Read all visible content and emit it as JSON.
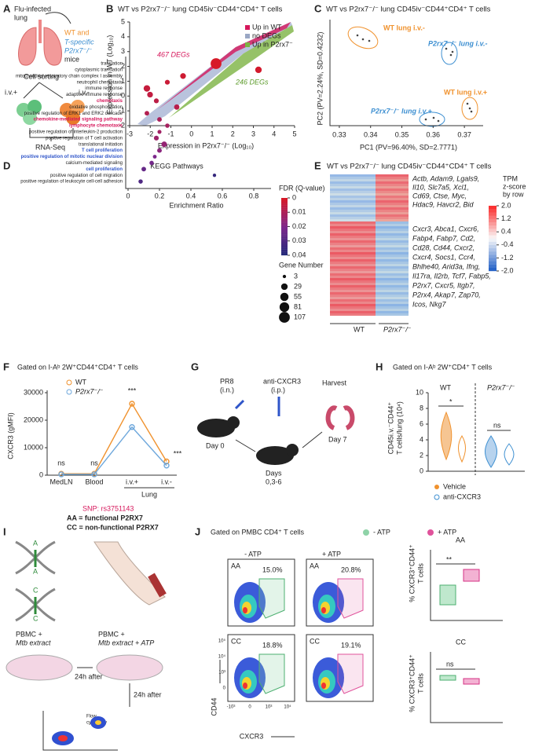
{
  "A": {
    "label": "A",
    "title_lines": [
      "Flu-infected",
      "lung"
    ],
    "wt": "WT and",
    "ko_lines": [
      "T-specific",
      "P2rx7⁻/⁻"
    ],
    "mice": "mice",
    "sorting": "Cell sorting",
    "ivp": "i.v.+",
    "ivm": "i.v.-",
    "rnaseq": "RNA-Seq"
  },
  "B": {
    "label": "B",
    "title": "WT vs P2rx7⁻/⁻ lung CD45iv⁻CD44⁺CD4⁺ T cells",
    "legend": [
      "Up in WT",
      "no DEGs",
      "Up in P2rx7⁻"
    ],
    "legend_colors": [
      "#d6175b",
      "#9aa7c4",
      "#7cb342"
    ],
    "up_wt": "467 DEGs",
    "up_ko": "246 DEGs",
    "x_label": "Expression in P2rx7⁻/⁻ (Log₁₀)",
    "y_label": "Expression in WT (Log₁₀)",
    "xlim": [
      -3,
      5
    ],
    "xticks": [
      -3,
      -2,
      -1,
      0,
      1,
      2,
      3,
      4,
      5
    ],
    "ylim": [
      -2,
      5
    ],
    "yticks": [
      -2,
      -1,
      0,
      1,
      2,
      3,
      4,
      5
    ]
  },
  "C": {
    "label": "C",
    "title": "WT vs P2rx7⁻/⁻ lung CD45iv⁻CD44⁺CD4⁺ T cells",
    "groups": [
      "WT lung i.v.-",
      "P2rx7⁻/⁻ lung i.v.-",
      "WT lung i.v.+",
      "P2rx7⁻/⁻ lung i.v.+"
    ],
    "x_label": "PC1 (PV=96.40%, SD=2.7771)",
    "y_label": "PC2 (PV=2.24%, SD=0.4232)",
    "xlim": [
      0.327,
      0.376
    ],
    "xticks": [
      0.33,
      0.34,
      0.35,
      0.36,
      0.37
    ]
  },
  "D": {
    "label": "D",
    "title": "KEGG Pathways",
    "terms": [
      "translation",
      "cytoplasmic translation",
      "mitochondrial respiratory chain complex I assembly",
      "neutrophil chemotaxis",
      "immune response",
      "adaptive immune response",
      "chemotaxis",
      "oxidative phosphorylation",
      "positive regulation of ERK1 and ERK2 cascade",
      "chemokine-mediated signaling pathway",
      "lymphocyte chemotaxis",
      "positive regulation of interleukin-2 production",
      "positive regulation of T cell activation",
      "translational initiation",
      "T cell proliferation",
      "positive regulation of mitotic nuclear division",
      "calcium-mediated signaling",
      "cell proliferation",
      "positive regulation of cell migration",
      "positive regulation of leukocyte cell-cell adhesion"
    ],
    "ratio": [
      0.56,
      0.83,
      0.35,
      0.25,
      0.12,
      0.14,
      0.18,
      0.31,
      0.12,
      0.2,
      0.25,
      0.2,
      0.18,
      0.23,
      0.2,
      0.17,
      0.15,
      0.1,
      0.55,
      0.08
    ],
    "genes": [
      107,
      29,
      20,
      12,
      29,
      20,
      12,
      16,
      10,
      10,
      8,
      6,
      12,
      18,
      10,
      5,
      8,
      10,
      3,
      8
    ],
    "fdr": [
      0,
      0.001,
      0.002,
      0.003,
      0.004,
      0.005,
      0.006,
      0.007,
      0.008,
      0.01,
      0.011,
      0.012,
      0.013,
      0.015,
      0.017,
      0.02,
      0.022,
      0.025,
      0.035,
      0.03
    ],
    "highlight": [
      null,
      null,
      null,
      null,
      null,
      null,
      "#d6175b",
      null,
      null,
      "#d6175b",
      "#d6175b",
      null,
      null,
      null,
      "#2f55c9",
      "#2f55c9",
      null,
      "#2f55c9",
      null,
      null
    ],
    "x_label": "Enrichment Ratio",
    "xlim": [
      0,
      0.9
    ],
    "xticks": [
      0,
      0.2,
      0.4,
      0.6,
      0.8
    ],
    "fdr_title": "FDR (Q-value)",
    "fdr_ticks": [
      0,
      0.01,
      0.02,
      0.03,
      0.04
    ],
    "size_title": "Gene Number",
    "size_ticks": [
      3,
      29,
      55,
      81,
      107
    ]
  },
  "E": {
    "label": "E",
    "title": "WT vs P2rx7⁻/⁻ lung CD45iv⁻CD44⁺CD4⁺ T cells",
    "genes_top": [
      "Actb, Adam9, Lgals9,",
      "Il10, Slc7a5, Xcl1,",
      "Cd69, Ctse, Myc,",
      "Hdac9, Havcr2, Bid"
    ],
    "genes_bottom": [
      "Cxcr3, Abca1, Cxcr6,",
      "Fabp4, Fabp7, Cd2,",
      "Cd28, Cd44, Cxcr2,",
      "Cxcr4, Socs1, Ccr4,",
      "Bhlhe40, Arid3a, Ifng,",
      "Il17ra, Il2rb, Tcf7, Fabp5,",
      "P2rx7, Cxcr5, Itgb7,",
      "P2rx4, Akap7, Zap70,",
      "Icos, Nkg7"
    ],
    "scale_title": [
      "TPM",
      "z-score",
      "by row"
    ],
    "scale_lim": [
      -2,
      2
    ],
    "scale_ticks": [
      {
        "value": 2,
        "label": "2.0"
      },
      1.2,
      0.4,
      -0.4,
      -1.2,
      {
        "value": -2,
        "label": "-2.0"
      }
    ],
    "groups": [
      "WT",
      "P2rx7⁻/⁻"
    ]
  },
  "F": {
    "label": "F",
    "chart_data": {
      "type": "line",
      "title": "Gated on I-Aᵇ 2W⁺CD44⁺CD4⁺ T cells",
      "y_label": "CXCR3 (gMFI)",
      "categories": [
        "MedLN",
        "Blood",
        "i.v.+",
        "i.v.-"
      ],
      "group_label": "Lung",
      "series": [
        {
          "name": "WT",
          "color": "#f0922e",
          "values": [
            500,
            500,
            26000,
            5000
          ]
        },
        {
          "name": "P2rx7⁻/⁻",
          "color": "#6fa8dc",
          "values": [
            300,
            300,
            17500,
            3500
          ]
        }
      ],
      "annotations": [
        "ns",
        "ns",
        "***",
        "***"
      ],
      "ylim": [
        0,
        30000
      ],
      "yticks": [
        0,
        10000,
        20000,
        30000
      ]
    }
  },
  "G": {
    "label": "G",
    "pr8": "PR8",
    "in": "(i.n.)",
    "anti": "anti-CXCR3",
    "ip": "(i.p.)",
    "harvest": "Harvest",
    "day0": "Day 0",
    "days": "Days",
    "days_val": "0,3-6",
    "day7": "Day 7"
  },
  "H": {
    "label": "H",
    "title": "Gated on I-Aᵇ 2W⁺CD4⁺ T cells",
    "y_label": [
      "CD45i.v.⁻CD44⁺",
      "T cells/lung (10⁴)"
    ],
    "groups": [
      "WT",
      "P2rx7⁻/⁻"
    ],
    "sig": [
      "*",
      "ns"
    ],
    "ylim": [
      0,
      10
    ],
    "yticks": [
      0,
      2,
      4,
      6,
      8,
      10
    ],
    "legend": [
      "Vehicle",
      "anti-CXCR3"
    ]
  },
  "I": {
    "label": "I",
    "snp": "SNP: rs3751143",
    "aa": "AA = functional P2RX7",
    "cc": "CC = non-functional P2RX7",
    "alleles": [
      "A",
      "A",
      "C",
      "C"
    ],
    "pbmc1": [
      "PBMC +",
      "Mtb extract"
    ],
    "pbmc2": [
      "PBMC +",
      "Mtb extract + ATP"
    ],
    "after": "24h after",
    "flow": [
      "Flow",
      "cytometry"
    ]
  },
  "J": {
    "label": "J",
    "title": "Gated on PMBC CD4⁺ T cells",
    "legend": [
      "- ATP",
      "+ ATP"
    ],
    "cols": [
      "- ATP",
      "+ ATP"
    ],
    "rows": [
      "AA",
      "CC"
    ],
    "pct": [
      "15.0%",
      "20.8%",
      "18.8%",
      "19.1%"
    ],
    "y_axis": "CD44",
    "x_axis": "CXCR3",
    "yticks": [
      "10⁵",
      "10⁴",
      "10³",
      "0"
    ],
    "xticks": [
      "-10³",
      "0",
      "10³",
      "10⁴"
    ],
    "stats": [
      "**",
      "ns"
    ],
    "stat_label": [
      "% CXCR3⁺CD44⁺",
      "T cells"
    ]
  }
}
